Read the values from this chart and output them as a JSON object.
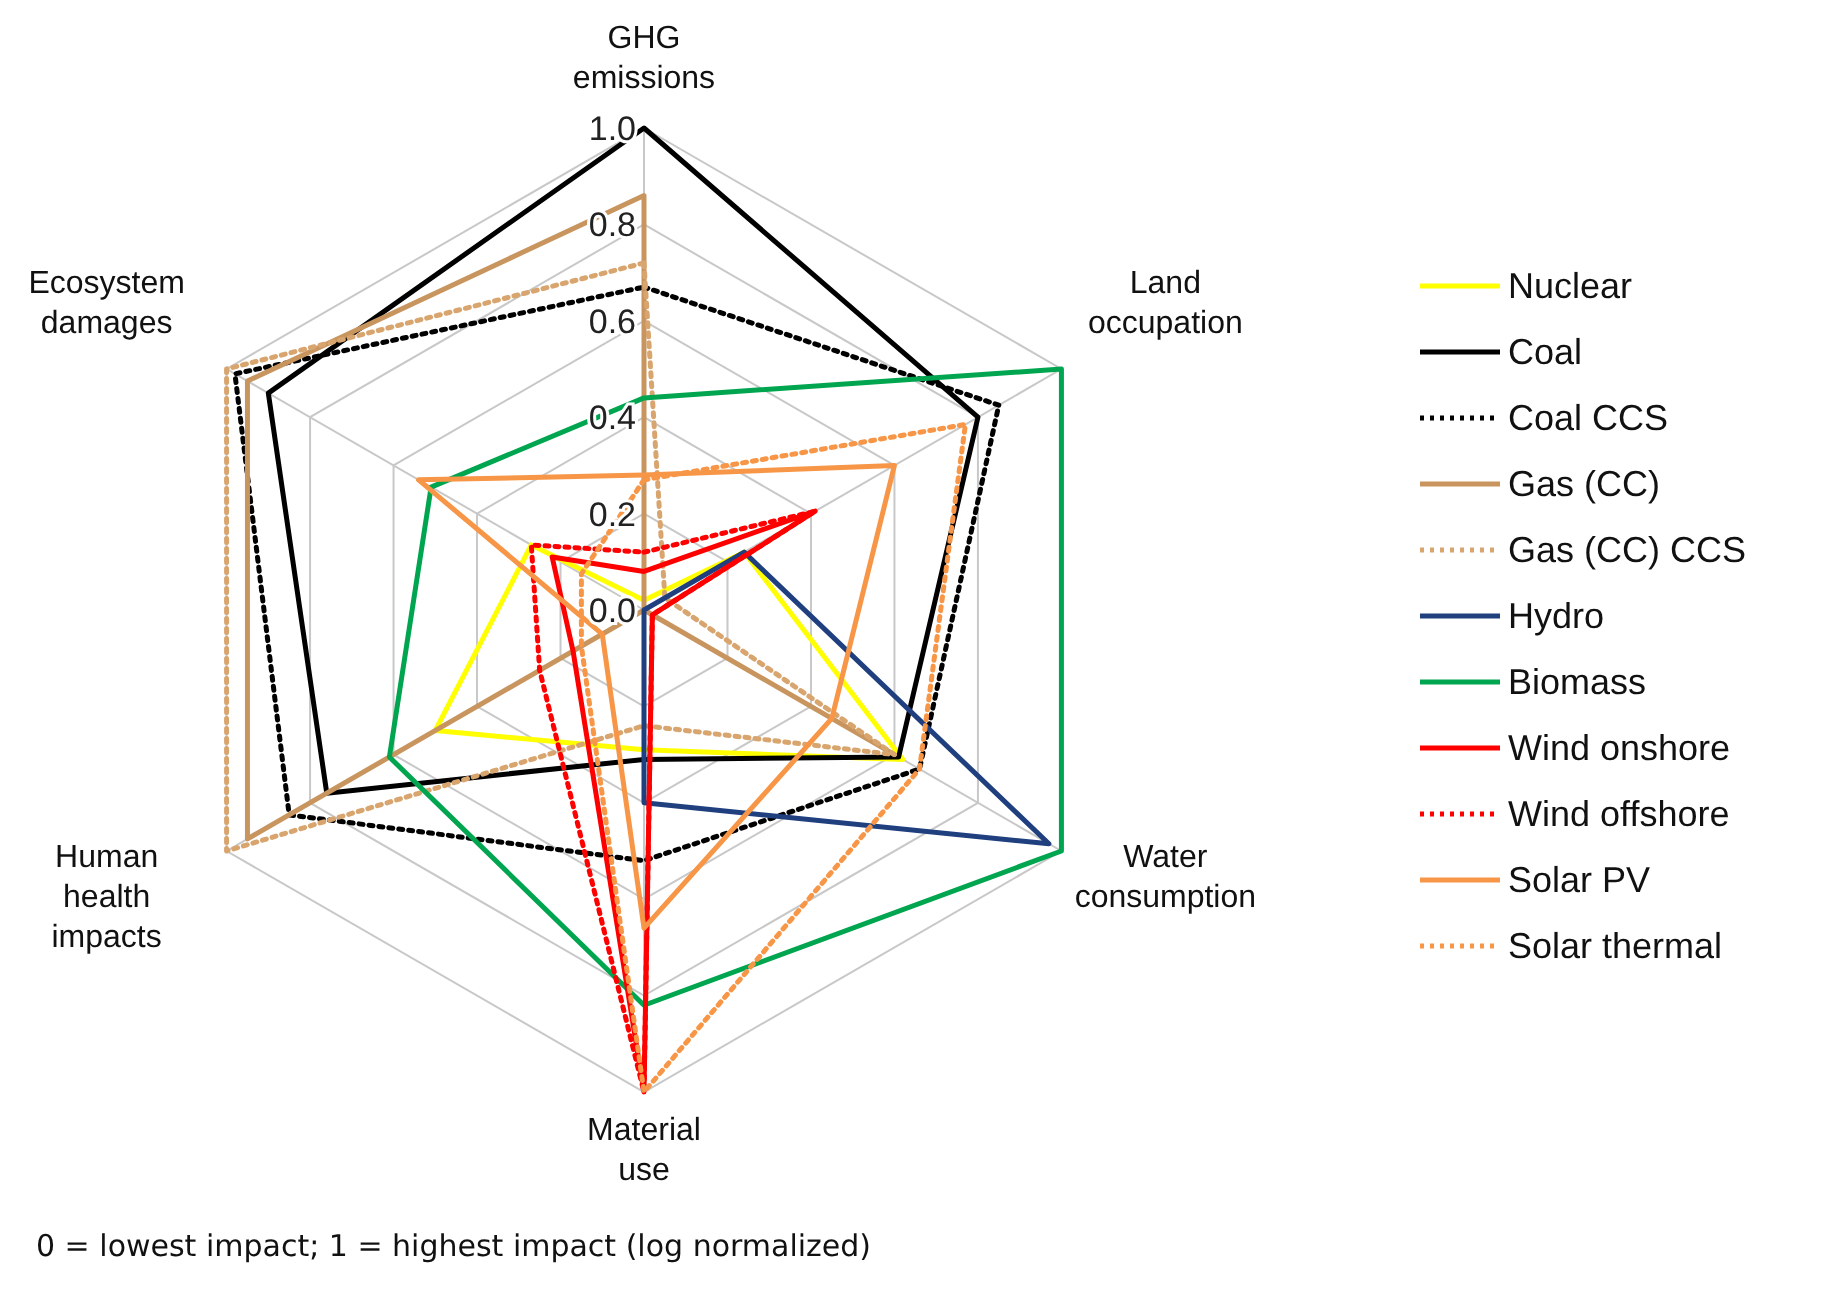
{
  "chart_data": {
    "type": "radar",
    "categories": [
      "GHG emissions",
      "Land occupation",
      "Water consumption",
      "Material use",
      "Human health impacts",
      "Ecosystem damages"
    ],
    "ylim": [
      0,
      1
    ],
    "yticks": [
      {
        "value": 0,
        "label": "0.0"
      },
      {
        "value": 0.2,
        "label": "0.2"
      },
      {
        "value": 0.4,
        "label": "0.4"
      },
      {
        "value": 0.6,
        "label": "0.6"
      },
      {
        "value": 0.8,
        "label": "0.8"
      },
      {
        "value": 1,
        "label": "1.0"
      }
    ],
    "grid": true,
    "legend": "right",
    "series": [
      {
        "name": "Nuclear",
        "color": "#ffff00",
        "line_style": "solid",
        "values": [
          0.02,
          0.24,
          0.62,
          0.29,
          0.5,
          0.27
        ]
      },
      {
        "name": "Coal",
        "color": "#000000",
        "line_style": "solid",
        "values": [
          1.0,
          0.8,
          0.61,
          0.31,
          0.76,
          0.9
        ]
      },
      {
        "name": "Coal CCS",
        "color": "#000000",
        "line_style": "dotted",
        "values": [
          0.67,
          0.85,
          0.66,
          0.52,
          0.85,
          0.98
        ]
      },
      {
        "name": "Gas (CC)",
        "color": "#c8955f",
        "line_style": "solid",
        "values": [
          0.86,
          0.0,
          0.6,
          0.0,
          0.95,
          0.95
        ]
      },
      {
        "name": "Gas (CC) CCS",
        "color": "#d9a56f",
        "line_style": "dotted",
        "values": [
          0.72,
          0.05,
          0.6,
          0.24,
          1.0,
          1.0
        ]
      },
      {
        "name": "Hydro",
        "color": "#1f3f7f",
        "line_style": "solid",
        "values": [
          0.0,
          0.24,
          0.97,
          0.4,
          0.0,
          0.0
        ]
      },
      {
        "name": "Biomass",
        "color": "#00a550",
        "line_style": "solid",
        "values": [
          0.44,
          1.0,
          1.0,
          0.82,
          0.61,
          0.51
        ]
      },
      {
        "name": "Wind onshore",
        "color": "#ff0000",
        "line_style": "solid",
        "values": [
          0.08,
          0.41,
          0.02,
          1.0,
          0.17,
          0.22
        ]
      },
      {
        "name": "Wind offshore",
        "color": "#ff0000",
        "line_style": "dotted",
        "values": [
          0.12,
          0.41,
          0.02,
          1.0,
          0.25,
          0.27
        ]
      },
      {
        "name": "Solar PV",
        "color": "#f79646",
        "line_style": "solid",
        "values": [
          0.28,
          0.6,
          0.45,
          0.66,
          0.1,
          0.54
        ]
      },
      {
        "name": "Solar thermal",
        "color": "#f79646",
        "line_style": "dotted",
        "values": [
          0.27,
          0.77,
          0.66,
          1.0,
          0.15,
          0.15
        ]
      }
    ],
    "annotations": [
      "0 = lowest impact; 1 = highest impact (log normalized)"
    ]
  }
}
